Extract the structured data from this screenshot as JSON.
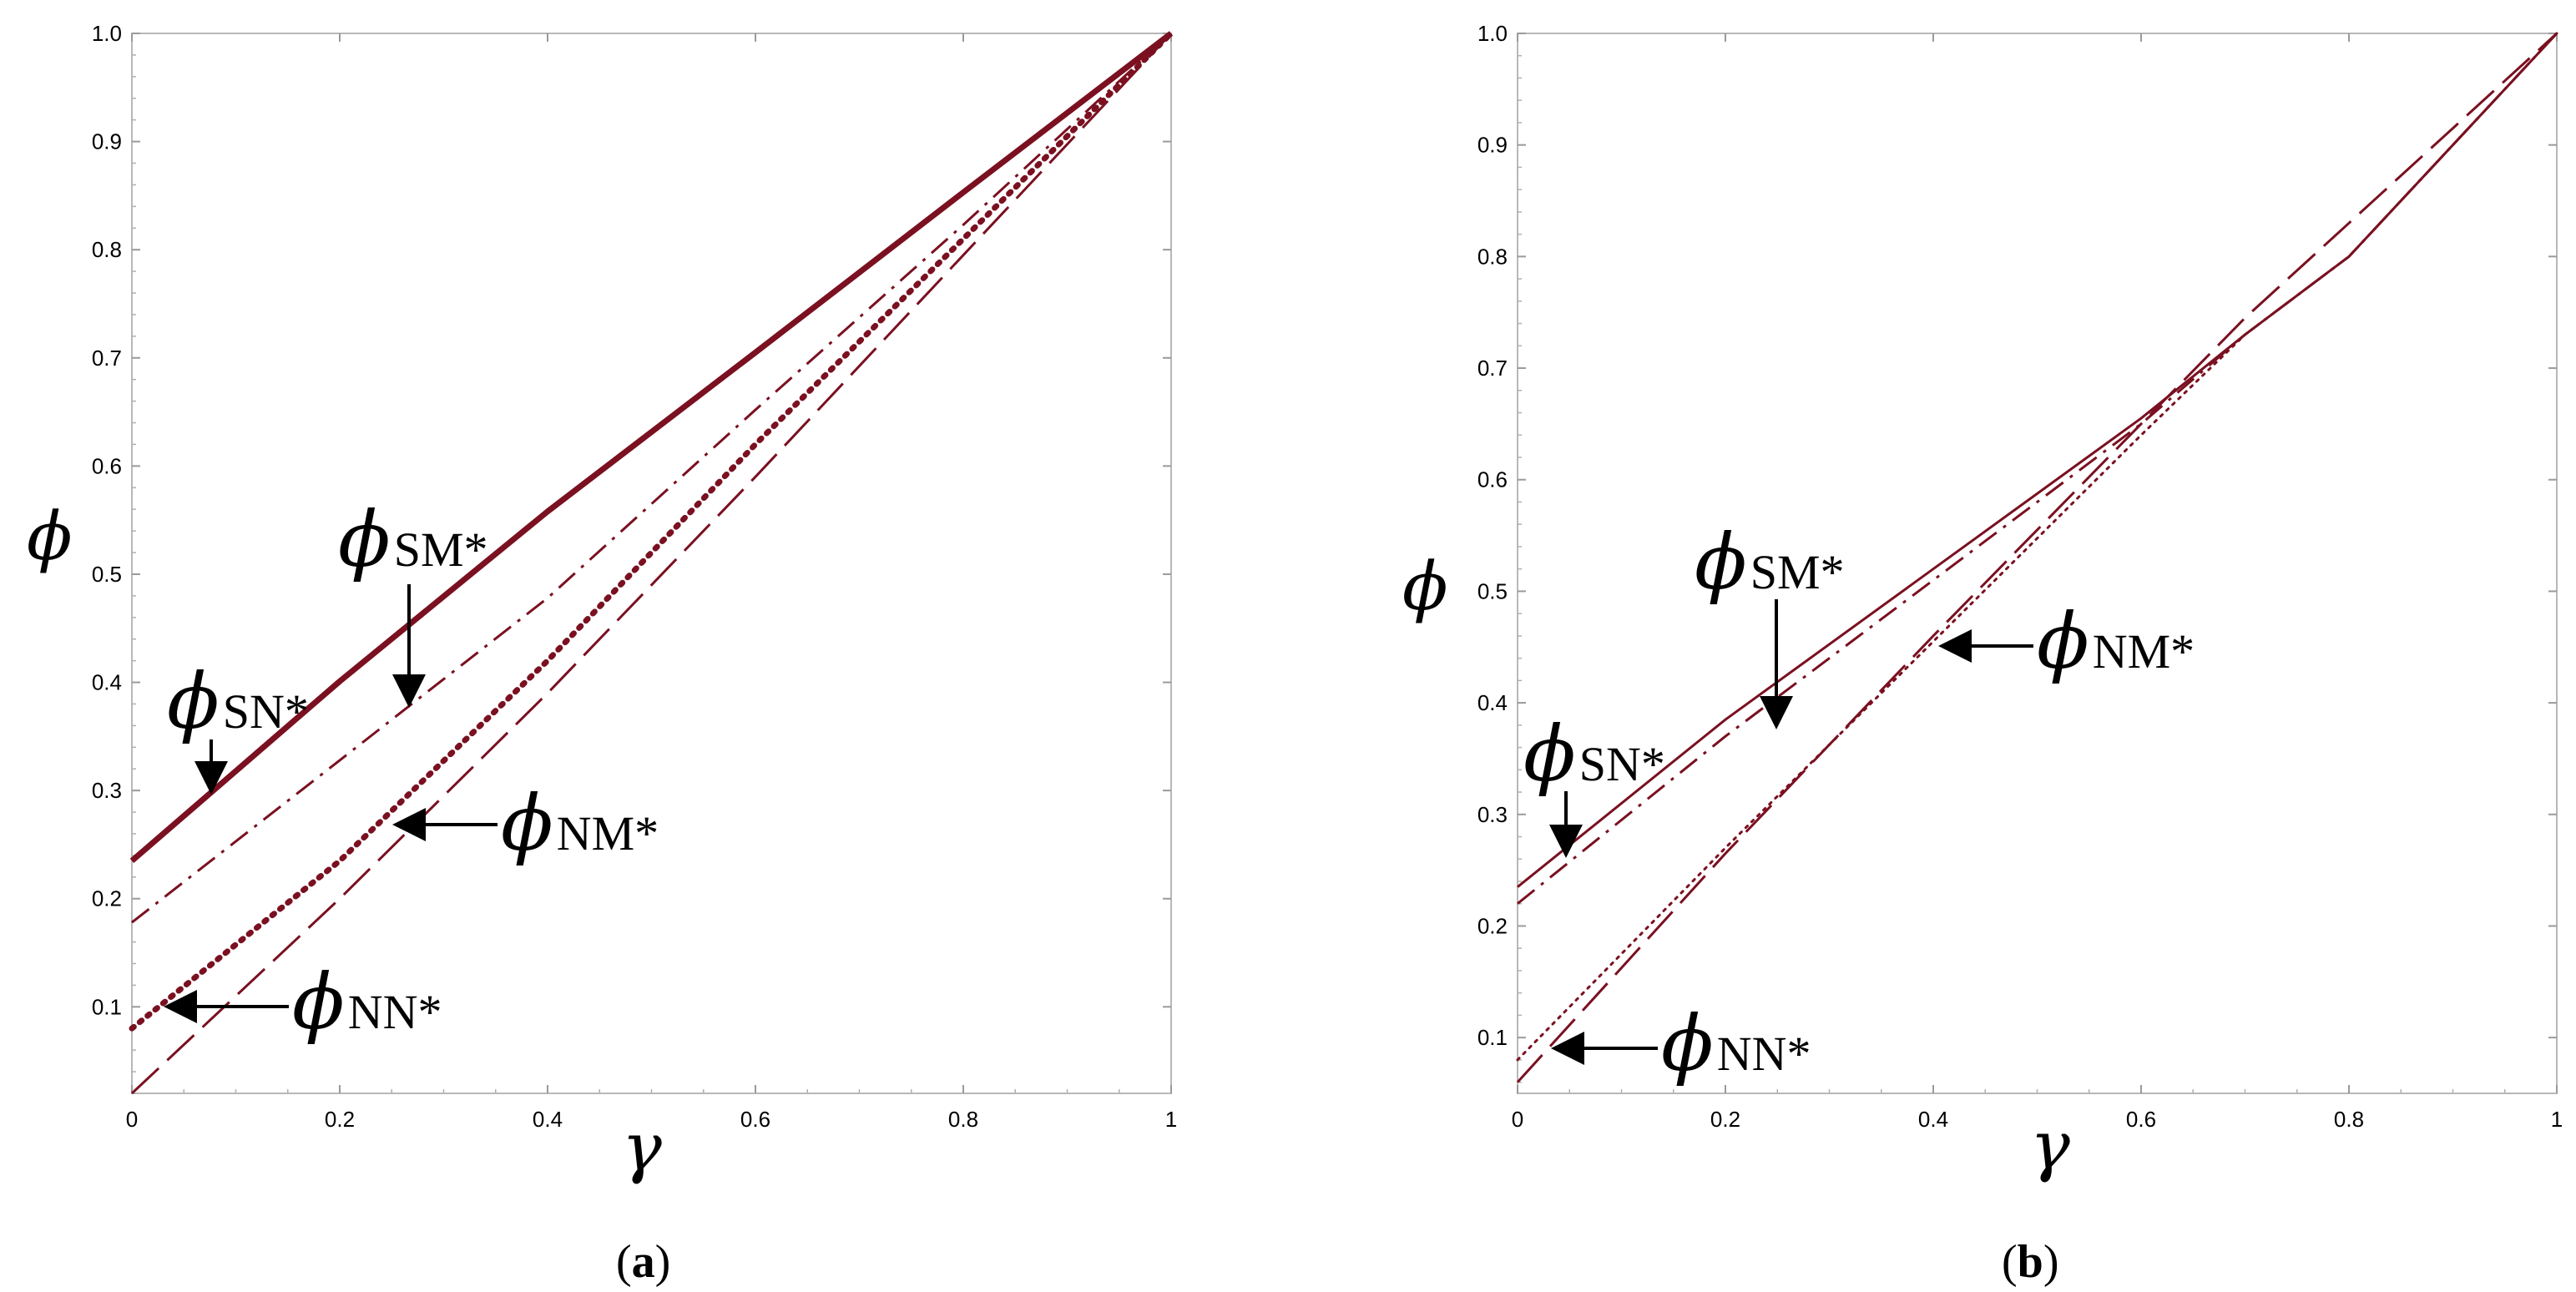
{
  "chart_data": [
    {
      "type": "line",
      "panel_label": "a",
      "xlabel": "γ",
      "ylabel": "ϕ",
      "xlim": [
        0,
        1
      ],
      "ylim": [
        0.02,
        1.0
      ],
      "xticks": [
        "0",
        "0.2",
        "0.4",
        "0.6",
        "0.8",
        "1"
      ],
      "yticks": [
        "0.1",
        "0.2",
        "0.3",
        "0.4",
        "0.5",
        "0.6",
        "0.7",
        "0.8",
        "0.9",
        "1.0"
      ],
      "grid": false,
      "color": "#7a1020",
      "series": [
        {
          "name": "ϕSN*",
          "style": "solid-thick",
          "x": [
            0,
            0.2,
            0.4,
            0.6,
            0.8,
            1.0
          ],
          "y": [
            0.235,
            0.401,
            0.558,
            0.705,
            0.853,
            1.0
          ]
        },
        {
          "name": "ϕSM*",
          "style": "dash-dot",
          "x": [
            0,
            0.2,
            0.4,
            0.6,
            0.8,
            1.0
          ],
          "y": [
            0.178,
            0.328,
            0.478,
            0.652,
            0.823,
            1.0
          ]
        },
        {
          "name": "ϕNM*",
          "style": "dotted-thick",
          "x": [
            0,
            0.2,
            0.4,
            0.6,
            0.8,
            1.0
          ],
          "y": [
            0.08,
            0.235,
            0.42,
            0.62,
            0.81,
            1.0
          ]
        },
        {
          "name": "ϕNN*",
          "style": "long-dash",
          "x": [
            0,
            0.2,
            0.4,
            0.6,
            0.8,
            1.0
          ],
          "y": [
            0.02,
            0.2,
            0.39,
            0.59,
            0.795,
            1.0
          ]
        }
      ],
      "annotations": [
        {
          "symbol": "ϕ",
          "sub": "SM*"
        },
        {
          "symbol": "ϕ",
          "sub": "SN*"
        },
        {
          "symbol": "ϕ",
          "sub": "NM*"
        },
        {
          "symbol": "ϕ",
          "sub": "NN*"
        }
      ]
    },
    {
      "type": "line",
      "panel_label": "b",
      "xlabel": "γ",
      "ylabel": "ϕ",
      "xlim": [
        0,
        1
      ],
      "ylim": [
        0.05,
        1.0
      ],
      "xticks": [
        "0",
        "0.2",
        "0.4",
        "0.6",
        "0.8",
        "1"
      ],
      "yticks": [
        "0.1",
        "0.2",
        "0.3",
        "0.4",
        "0.5",
        "0.6",
        "0.7",
        "0.8",
        "0.9",
        "1.0"
      ],
      "grid": false,
      "color": "#7a1020",
      "series": [
        {
          "name": "ϕSN*",
          "style": "solid",
          "x": [
            0,
            0.2,
            0.4,
            0.6,
            0.7,
            0.8,
            1.0
          ],
          "y": [
            0.235,
            0.385,
            0.52,
            0.655,
            0.73,
            0.8,
            1.0
          ]
        },
        {
          "name": "ϕSM*",
          "style": "dash-dot",
          "x": [
            0,
            0.2,
            0.4,
            0.6,
            0.7,
            0.8,
            1.0
          ],
          "y": [
            0.22,
            0.37,
            0.51,
            0.65,
            0.73,
            0.8,
            1.0
          ]
        },
        {
          "name": "ϕNM*",
          "style": "dotted",
          "x": [
            0,
            0.2,
            0.4,
            0.6,
            0.7,
            0.8,
            1.0
          ],
          "y": [
            0.08,
            0.27,
            0.455,
            0.64,
            0.73,
            0.8,
            1.0
          ]
        },
        {
          "name": "ϕNN*",
          "style": "long-dash",
          "x": [
            0,
            0.2,
            0.4,
            0.6,
            0.7,
            0.8,
            1.0
          ],
          "y": [
            0.06,
            0.265,
            0.46,
            0.65,
            0.745,
            0.83,
            1.0
          ]
        }
      ],
      "annotations": [
        {
          "symbol": "ϕ",
          "sub": "SM*"
        },
        {
          "symbol": "ϕ",
          "sub": "SN*"
        },
        {
          "symbol": "ϕ",
          "sub": "NM*"
        },
        {
          "symbol": "ϕ",
          "sub": "NN*"
        }
      ]
    }
  ]
}
